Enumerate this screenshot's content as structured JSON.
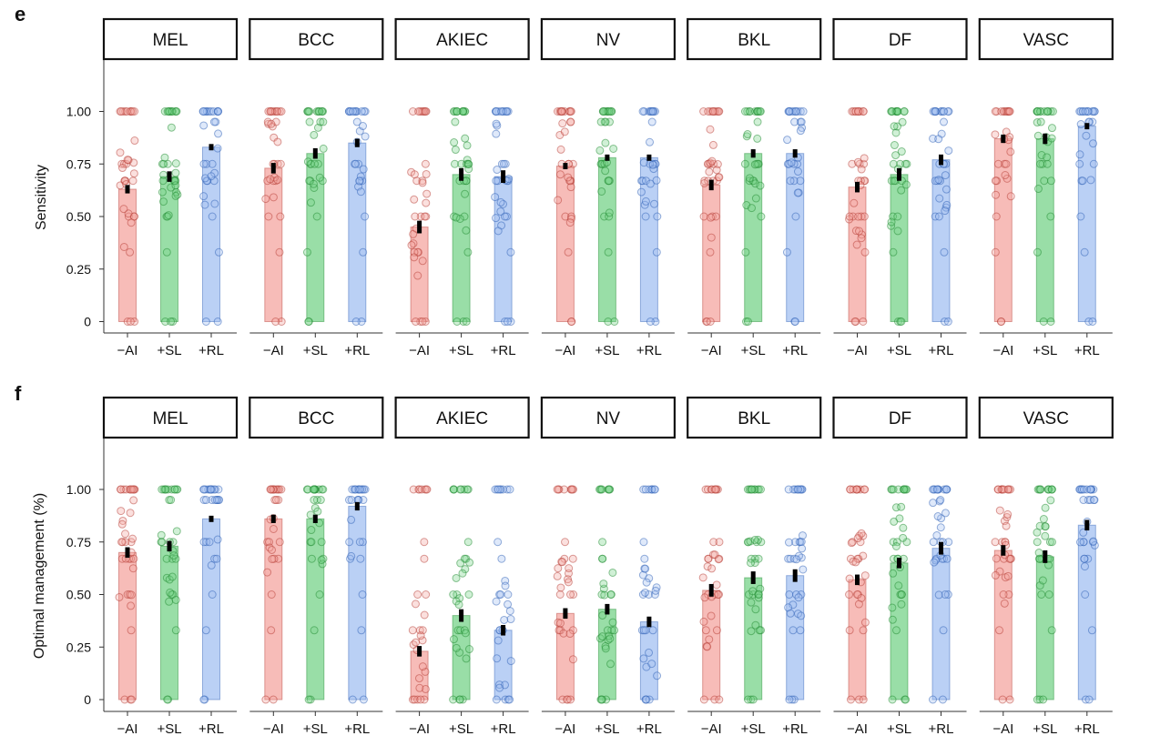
{
  "panels": [
    {
      "letter": "e",
      "ylabel": "Sensitivity"
    },
    {
      "letter": "f",
      "ylabel": "Optimal management (%)"
    }
  ],
  "colors": {
    "-AI": "#f4a6a0",
    "+SL": "#77d38a",
    "+RL": "#a3c0f2",
    "-AI_dots": "#b53c34",
    "+SL_dots": "#1f8a2f",
    "+RL_dots": "#2e5fb5",
    "error_bar": "#000000"
  },
  "chart_data": [
    {
      "type": "bar",
      "panel": "e",
      "ylabel": "Sensitivity",
      "ylim": [
        0,
        1
      ],
      "yticks": [
        0,
        0.25,
        0.5,
        0.75,
        1.0
      ],
      "ytick_labels": [
        "0",
        "0.25",
        "0.50",
        "0.75",
        "1.00"
      ],
      "categories": [
        "MEL",
        "BCC",
        "AKIEC",
        "NV",
        "BKL",
        "DF",
        "VASC"
      ],
      "groups": [
        "−AI",
        "+SL",
        "+RL"
      ],
      "series": [
        {
          "group": "-AI",
          "values": [
            0.63,
            0.73,
            0.45,
            0.74,
            0.65,
            0.64,
            0.87
          ],
          "errors": [
            0.02,
            0.025,
            0.03,
            0.015,
            0.025,
            0.025,
            0.02
          ]
        },
        {
          "group": "+SL",
          "values": [
            0.69,
            0.8,
            0.7,
            0.78,
            0.8,
            0.7,
            0.87
          ],
          "errors": [
            0.025,
            0.025,
            0.03,
            0.015,
            0.02,
            0.03,
            0.025
          ]
        },
        {
          "group": "+RL",
          "values": [
            0.83,
            0.85,
            0.69,
            0.78,
            0.8,
            0.77,
            0.93
          ],
          "errors": [
            0.015,
            0.02,
            0.03,
            0.015,
            0.02,
            0.025,
            0.015
          ]
        }
      ],
      "individual_points": "jittered participant-level dots cluster at 0, 0.33, 0.50, 0.67, 0.75 and 1.00"
    },
    {
      "type": "bar",
      "panel": "f",
      "ylabel": "Optimal management (%)",
      "ylim": [
        0,
        1
      ],
      "yticks": [
        0,
        0.25,
        0.5,
        0.75,
        1.0
      ],
      "ytick_labels": [
        "0",
        "0.25",
        "0.50",
        "0.75",
        "1.00"
      ],
      "categories": [
        "MEL",
        "BCC",
        "AKIEC",
        "NV",
        "BKL",
        "DF",
        "VASC"
      ],
      "groups": [
        "−AI",
        "+SL",
        "+RL"
      ],
      "series": [
        {
          "group": "-AI",
          "values": [
            0.7,
            0.86,
            0.23,
            0.41,
            0.52,
            0.57,
            0.71
          ],
          "errors": [
            0.025,
            0.02,
            0.025,
            0.025,
            0.03,
            0.025,
            0.025
          ]
        },
        {
          "group": "+SL",
          "values": [
            0.73,
            0.86,
            0.4,
            0.43,
            0.58,
            0.65,
            0.68
          ],
          "errors": [
            0.025,
            0.02,
            0.03,
            0.025,
            0.03,
            0.025,
            0.03
          ]
        },
        {
          "group": "+RL",
          "values": [
            0.86,
            0.92,
            0.33,
            0.37,
            0.59,
            0.72,
            0.83
          ],
          "errors": [
            0.015,
            0.02,
            0.025,
            0.025,
            0.03,
            0.03,
            0.025
          ]
        }
      ],
      "individual_points": "jittered participant-level dots cluster at 0, 0.33, 0.50, 0.67, 0.75 and 1.00"
    }
  ]
}
